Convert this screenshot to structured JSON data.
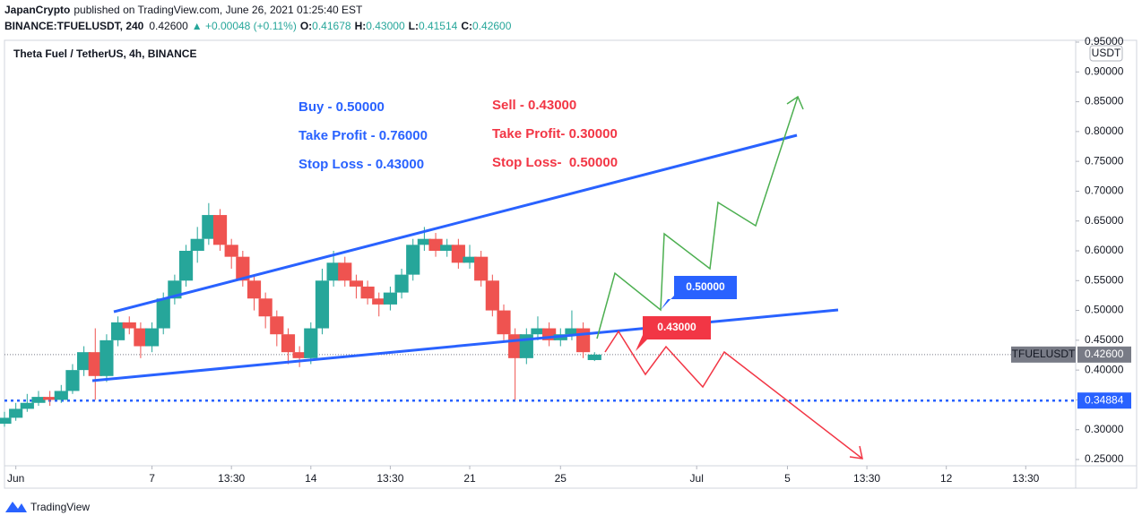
{
  "header": {
    "publisher": "JapanCrypto",
    "published_text": "published on TradingView.com, June 26, 2021 01:25:40 EST",
    "symbol": "BINANCE:TFUELUSDT, 240",
    "last": "0.42600",
    "change": "▲ +0.00048 (+0.11%)",
    "open_label": "O:",
    "open": "0.41678",
    "high_label": "H:",
    "high": "0.43000",
    "low_label": "L:",
    "low": "0.41514",
    "close_label": "C:",
    "close": "0.42600"
  },
  "footer": {
    "brand": "TradingView"
  },
  "annotations": {
    "buy": [
      "Buy - 0.50000",
      "Take Profit - 0.76000",
      "Stop Loss - 0.43000"
    ],
    "sell": [
      "Sell - 0.43000",
      "Take Profit- 0.30000",
      "Stop Loss-  0.50000"
    ],
    "callout_buy": "0.50000",
    "callout_sell": "0.43000"
  },
  "chart_data": {
    "type": "candlestick",
    "title": "Theta Fuel / TetherUS, 4h, BINANCE",
    "price_unit": "USDT",
    "symbol_label": "TFUELUSDT",
    "up_color": "#26a69a",
    "down_color": "#ef5350",
    "x": [
      -0.5,
      0,
      0.5,
      1,
      1.5,
      2,
      2.5,
      3,
      3.5,
      4,
      4.5,
      5,
      5.5,
      6,
      6.5,
      7,
      7.5,
      8,
      8.5,
      9,
      9.5,
      10,
      10.5,
      11,
      11.5,
      12,
      12.5,
      13,
      13.5,
      14,
      14.5,
      15,
      15.5,
      16,
      16.5,
      17,
      17.5,
      18,
      18.5,
      19,
      19.5,
      20,
      20.5,
      21,
      21.5,
      22,
      22.5,
      23,
      23.5,
      24,
      24.5,
      25,
      25.5
    ],
    "open": [
      0.31,
      0.32,
      0.335,
      0.345,
      0.355,
      0.35,
      0.365,
      0.4,
      0.43,
      0.39,
      0.45,
      0.48,
      0.47,
      0.44,
      0.47,
      0.52,
      0.55,
      0.6,
      0.62,
      0.66,
      0.61,
      0.59,
      0.55,
      0.52,
      0.49,
      0.46,
      0.43,
      0.42,
      0.47,
      0.55,
      0.58,
      0.55,
      0.54,
      0.52,
      0.51,
      0.53,
      0.56,
      0.61,
      0.62,
      0.6,
      0.61,
      0.58,
      0.59,
      0.55,
      0.5,
      0.46,
      0.42,
      0.46,
      0.47,
      0.45,
      0.46,
      0.47,
      0.41678
    ],
    "high": [
      0.33,
      0.345,
      0.36,
      0.365,
      0.365,
      0.375,
      0.41,
      0.44,
      0.47,
      0.46,
      0.49,
      0.49,
      0.48,
      0.48,
      0.53,
      0.56,
      0.61,
      0.64,
      0.68,
      0.67,
      0.62,
      0.6,
      0.56,
      0.53,
      0.5,
      0.47,
      0.44,
      0.48,
      0.57,
      0.6,
      0.59,
      0.56,
      0.55,
      0.53,
      0.54,
      0.57,
      0.62,
      0.64,
      0.63,
      0.62,
      0.62,
      0.61,
      0.6,
      0.56,
      0.51,
      0.47,
      0.47,
      0.49,
      0.48,
      0.47,
      0.5,
      0.48,
      0.43
    ],
    "low": [
      0.305,
      0.315,
      0.33,
      0.34,
      0.34,
      0.345,
      0.36,
      0.39,
      0.35,
      0.38,
      0.44,
      0.46,
      0.42,
      0.43,
      0.46,
      0.51,
      0.54,
      0.58,
      0.61,
      0.6,
      0.57,
      0.54,
      0.5,
      0.47,
      0.44,
      0.41,
      0.405,
      0.41,
      0.46,
      0.54,
      0.54,
      0.52,
      0.51,
      0.49,
      0.5,
      0.52,
      0.55,
      0.6,
      0.59,
      0.59,
      0.57,
      0.57,
      0.54,
      0.49,
      0.45,
      0.35,
      0.41,
      0.45,
      0.44,
      0.44,
      0.45,
      0.42,
      0.41514
    ],
    "close": [
      0.32,
      0.335,
      0.345,
      0.355,
      0.35,
      0.365,
      0.4,
      0.43,
      0.39,
      0.45,
      0.48,
      0.47,
      0.44,
      0.47,
      0.52,
      0.55,
      0.6,
      0.62,
      0.66,
      0.61,
      0.59,
      0.55,
      0.52,
      0.49,
      0.46,
      0.43,
      0.42,
      0.47,
      0.55,
      0.58,
      0.55,
      0.54,
      0.52,
      0.51,
      0.53,
      0.56,
      0.61,
      0.62,
      0.6,
      0.61,
      0.58,
      0.59,
      0.55,
      0.5,
      0.46,
      0.42,
      0.46,
      0.47,
      0.45,
      0.46,
      0.47,
      0.43,
      0.426
    ],
    "xlim": [
      -0.5,
      46.7
    ],
    "ylim": [
      0.2395,
      0.953
    ],
    "xticks": [
      {
        "value": 0,
        "label": "Jun"
      },
      {
        "value": 6,
        "label": "7"
      },
      {
        "value": 9.5,
        "label": "13:30"
      },
      {
        "value": 13,
        "label": "14"
      },
      {
        "value": 16.5,
        "label": "13:30"
      },
      {
        "value": 20,
        "label": "21"
      },
      {
        "value": 24,
        "label": "25"
      },
      {
        "value": 30,
        "label": "Jul"
      },
      {
        "value": 34,
        "label": "5"
      },
      {
        "value": 37.5,
        "label": "13:30"
      },
      {
        "value": 41,
        "label": "12"
      },
      {
        "value": 44.5,
        "label": "13:30"
      }
    ],
    "yticks": [
      {
        "value": 0.25,
        "label": "0.25000"
      },
      {
        "value": 0.3,
        "label": "0.30000"
      },
      {
        "value": 0.35,
        "label": "0.35000"
      },
      {
        "value": 0.4,
        "label": "0.40000"
      },
      {
        "value": 0.45,
        "label": "0.45000"
      },
      {
        "value": 0.5,
        "label": "0.50000"
      },
      {
        "value": 0.55,
        "label": "0.55000"
      },
      {
        "value": 0.6,
        "label": "0.60000"
      },
      {
        "value": 0.65,
        "label": "0.65000"
      },
      {
        "value": 0.7,
        "label": "0.70000"
      },
      {
        "value": 0.75,
        "label": "0.75000"
      },
      {
        "value": 0.8,
        "label": "0.80000"
      },
      {
        "value": 0.85,
        "label": "0.85000"
      },
      {
        "value": 0.9,
        "label": "0.90000"
      },
      {
        "value": 0.95,
        "label": "0.95000"
      }
    ],
    "last_price": {
      "value": 0.426,
      "label": "0.42600"
    },
    "level": {
      "value": 0.34884,
      "label": "0.34884"
    }
  }
}
